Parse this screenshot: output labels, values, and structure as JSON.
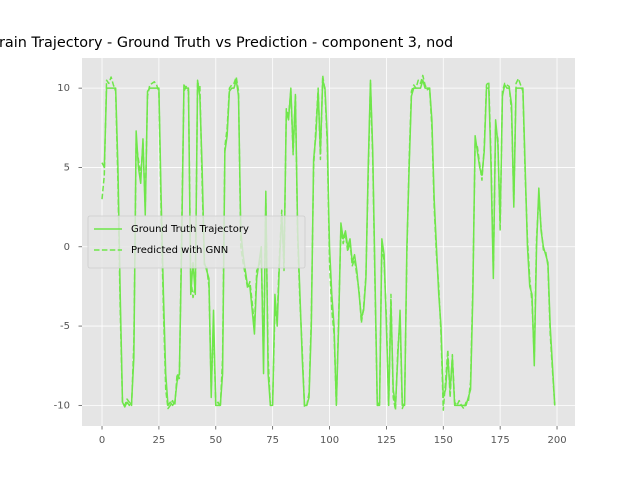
{
  "chart_data": {
    "type": "line",
    "title": "rain Trajectory - Ground Truth vs Prediction - component 3, nod",
    "x": [
      0,
      1,
      2,
      3,
      4,
      5,
      6,
      7,
      8,
      9,
      10,
      11,
      12,
      13,
      14,
      15,
      16,
      17,
      18,
      19,
      20,
      21,
      22,
      23,
      24,
      25,
      26,
      27,
      28,
      29,
      30,
      31,
      32,
      33,
      34,
      35,
      36,
      37,
      38,
      39,
      40,
      41,
      42,
      43,
      44,
      45,
      46,
      47,
      48,
      49,
      50,
      51,
      52,
      53,
      54,
      55,
      56,
      57,
      58,
      59,
      60,
      61,
      62,
      63,
      64,
      65,
      66,
      67,
      68,
      69,
      70,
      71,
      72,
      73,
      74,
      75,
      76,
      77,
      78,
      79,
      80,
      81,
      82,
      83,
      84,
      85,
      86,
      87,
      88,
      89,
      90,
      91,
      92,
      93,
      94,
      95,
      96,
      97,
      98,
      99,
      100,
      101,
      102,
      103,
      104,
      105,
      106,
      107,
      108,
      109,
      110,
      111,
      112,
      113,
      114,
      115,
      116,
      117,
      118,
      119,
      120,
      121,
      122,
      123,
      124,
      125,
      126,
      127,
      128,
      129,
      130,
      131,
      132,
      133,
      134,
      135,
      136,
      137,
      138,
      139,
      140,
      141,
      142,
      143,
      144,
      145,
      146,
      147,
      148,
      149,
      150,
      151,
      152,
      153,
      154,
      155,
      156,
      157,
      158,
      159,
      160,
      161,
      162,
      163,
      164,
      165,
      166,
      167,
      168,
      169,
      170,
      171,
      172,
      173,
      174,
      175,
      176,
      177,
      178,
      179,
      180,
      181,
      182,
      183,
      184,
      185,
      186,
      187,
      188,
      189,
      190,
      191,
      192,
      193,
      194,
      195,
      196,
      197,
      198,
      199
    ],
    "series": [
      {
        "name": "Ground Truth Trajectory",
        "color": "#6fe64a",
        "dash": "solid",
        "values": [
          5.3,
          5.0,
          10,
          10,
          10,
          10,
          10,
          5,
          -3,
          -9.8,
          -10.1,
          -9.8,
          -10,
          -9.8,
          -7,
          7.3,
          5,
          4,
          6.8,
          2,
          9.8,
          10,
          10,
          10,
          10,
          10,
          3,
          -3,
          -8,
          -10,
          -9.8,
          -10,
          -9.8,
          -8.5,
          -8,
          0,
          10.2,
          10,
          10,
          -3,
          -1,
          -3,
          10.5,
          9.5,
          5,
          -1,
          -1.5,
          -2,
          -9.5,
          -4,
          -10,
          -10,
          -10,
          -8,
          6,
          7,
          9.8,
          10,
          10,
          10.5,
          9.5,
          1,
          -0.5,
          -1.5,
          -2.5,
          -2.5,
          -4,
          -5.5,
          -2,
          -1,
          0,
          -8,
          3.5,
          -8,
          -10,
          -10,
          -3,
          -5,
          -1,
          2,
          -1,
          8.5,
          8,
          10,
          6,
          9.5,
          1,
          -3,
          -7,
          -10,
          -10,
          -9.5,
          -5,
          5.5,
          7,
          9.8,
          6,
          10.5,
          10,
          7,
          0,
          -3,
          -5,
          -10,
          -5,
          1.5,
          0.5,
          1,
          0,
          0.5,
          -1,
          -0.5,
          -1.5,
          -3,
          -4.5,
          -4,
          -2,
          5,
          10.5,
          6,
          -2,
          -10,
          -10,
          0.5,
          -0.5,
          -5,
          -10,
          -3.5,
          -9,
          -10,
          -7,
          -4,
          -10,
          -10,
          0,
          5,
          9.5,
          10,
          10,
          10,
          10,
          10.5,
          10,
          10,
          10,
          8,
          3,
          0,
          -3,
          -5,
          -9.5,
          -9,
          -7,
          -9,
          -7,
          -10,
          -10,
          -10,
          -10,
          -10,
          -10,
          -9.5,
          -9,
          -3,
          7,
          6,
          5,
          4.5,
          6,
          10,
          10,
          5,
          -2,
          8,
          6.5,
          1.5,
          9.5,
          10.2,
          10,
          10,
          9,
          2.5,
          10,
          10,
          10,
          10,
          5,
          0,
          -2.5,
          -3,
          -7.5,
          0,
          3.7,
          1,
          0,
          -0.5,
          -1,
          -5,
          -7.5,
          -10
        ]
      },
      {
        "name": "Predicted with GNN",
        "color": "#6fe64a",
        "dash": "dashed",
        "values": [
          3.0,
          4.5,
          10.5,
          10.3,
          10.7,
          10.2,
          9.8,
          4,
          -4,
          -9.9,
          -10,
          -9.6,
          -9.8,
          -10,
          -6,
          6.5,
          5.5,
          4.5,
          6.5,
          2.5,
          9.5,
          10.2,
          10.3,
          10.4,
          10.2,
          9.8,
          2,
          -4,
          -9,
          -10.2,
          -10,
          -9.7,
          -10,
          -8,
          -8.3,
          1,
          9.8,
          10.1,
          9.8,
          -2,
          -3.2,
          -2.5,
          10.3,
          10.2,
          4,
          -1.2,
          -1.3,
          -2.5,
          -9,
          -5,
          -10,
          -9.8,
          -10.1,
          -7,
          6.3,
          7.5,
          10,
          10.2,
          10.3,
          10.7,
          9.8,
          0,
          -1,
          -1.8,
          -2.6,
          -2.2,
          -3.5,
          -5,
          -1.5,
          -1.2,
          -0.5,
          -7,
          3,
          -7,
          -10,
          -9.8,
          -4,
          -4.5,
          -0.5,
          2.3,
          -1.5,
          8.7,
          8.3,
          9.8,
          5.8,
          9.6,
          0.5,
          -3.5,
          -6.5,
          -10.1,
          -10,
          -9.2,
          -4.5,
          5,
          7.5,
          10,
          5.5,
          10.8,
          9.8,
          6.5,
          -1,
          -4,
          -5.5,
          -10,
          -4.5,
          1.2,
          0.2,
          0.8,
          -0.3,
          0.3,
          -1.2,
          -0.8,
          -1.8,
          -2.8,
          -4.8,
          -3.8,
          -1.8,
          4.5,
          10.3,
          5.5,
          -2.5,
          -10,
          -9.8,
          0.2,
          -1,
          -4.5,
          -10,
          -3,
          -9.5,
          -10.3,
          -6.5,
          -4.5,
          -10.2,
          -9.8,
          -0.5,
          5.5,
          9.8,
          10.2,
          10,
          10.5,
          10.3,
          10.8,
          10.2,
          9.9,
          10,
          7.5,
          2.5,
          -0.5,
          -2.5,
          -5.5,
          -10.3,
          -8.5,
          -6.5,
          -9.5,
          -6.8,
          -9.8,
          -10,
          -9.7,
          -10,
          -10.2,
          -9.8,
          -9.8,
          -8.5,
          -2.5,
          6.5,
          6.3,
          5.2,
          4.2,
          6.3,
          10.2,
          10.4,
          5.5,
          -1.5,
          7.5,
          6.8,
          1,
          9.8,
          10.3,
          10.2,
          10.1,
          8.5,
          2.8,
          10.3,
          10.6,
          10.2,
          9.8,
          4.5,
          0.5,
          -2,
          -3.5,
          -7,
          0.5,
          3.2,
          1.2,
          -0.2,
          -0.3,
          -1.2,
          -5.5,
          -7.8,
          -10
        ]
      }
    ],
    "xlim": [
      -8.8,
      207.9
    ],
    "ylim": [
      -11.3,
      11.9
    ],
    "xticks": [
      0,
      25,
      50,
      75,
      100,
      125,
      150,
      175,
      200
    ],
    "yticks": [
      -10,
      -5,
      0,
      5,
      10
    ],
    "grid": true,
    "legend": "center left"
  }
}
